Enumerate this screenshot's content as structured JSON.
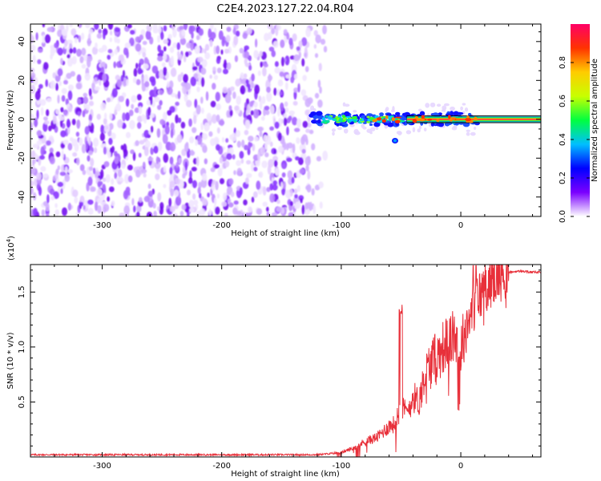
{
  "title": "C2E4.2023.127.22.04.R04",
  "chart_data": [
    {
      "type": "heatmap",
      "xlabel": "Height of straight line (km)",
      "ylabel": "Frequency (Hz)",
      "xlim": [
        -360,
        67
      ],
      "ylim": [
        -50,
        49
      ],
      "xticks": [
        -300,
        -200,
        -100,
        0
      ],
      "yticks": [
        -40,
        -20,
        0,
        20,
        40
      ],
      "noise_region_x": [
        -360,
        -125
      ],
      "signal_region_x": [
        -125,
        67
      ],
      "signal_center_hz": 0,
      "colorbar": {
        "label": "Normalized spectral amplitude",
        "range": [
          0,
          1
        ],
        "ticks": [
          0.0,
          0.2,
          0.4,
          0.6,
          0.8
        ],
        "tick_labels": [
          "0.0",
          "0.2",
          "0.4",
          "0.6",
          "0.8"
        ],
        "colors": [
          "#ffffff",
          "#7b00ff",
          "#0000ff",
          "#00bfff",
          "#00ff40",
          "#c8ff00",
          "#ffcc00",
          "#ff3300",
          "#ff0066"
        ]
      }
    },
    {
      "type": "line",
      "xlabel": "Height of straight line (km)",
      "ylabel": "SNR (10 * v/v)",
      "scale_label": "(x10^4)",
      "scale_base": "(x10",
      "scale_exp": "4",
      "xlim": [
        -360,
        67
      ],
      "ylim": [
        0,
        1.75
      ],
      "xticks": [
        -300,
        -200,
        -100,
        0
      ],
      "yticks": [
        0.5,
        1.0,
        1.5
      ],
      "ytick_labels": [
        "0.5",
        "1.0",
        "1.5"
      ],
      "color": "#e8303a",
      "series": [
        {
          "name": "SNR",
          "x": [
            -360,
            -300,
            -200,
            -120,
            -100,
            -90,
            -80,
            -70,
            -60,
            -55,
            -50,
            -45,
            -40,
            -35,
            -30,
            -25,
            -20,
            -15,
            -10,
            -5,
            0,
            5,
            10,
            15,
            20,
            25,
            30,
            40,
            50,
            60,
            67
          ],
          "values": [
            0.02,
            0.02,
            0.02,
            0.02,
            0.04,
            0.08,
            0.14,
            0.18,
            0.28,
            0.3,
            0.45,
            0.4,
            0.55,
            0.5,
            0.75,
            0.85,
            0.9,
            1.0,
            1.05,
            1.1,
            1.0,
            1.2,
            1.35,
            1.45,
            1.55,
            1.6,
            1.65,
            1.68,
            1.69,
            1.68,
            1.68
          ]
        }
      ]
    }
  ]
}
